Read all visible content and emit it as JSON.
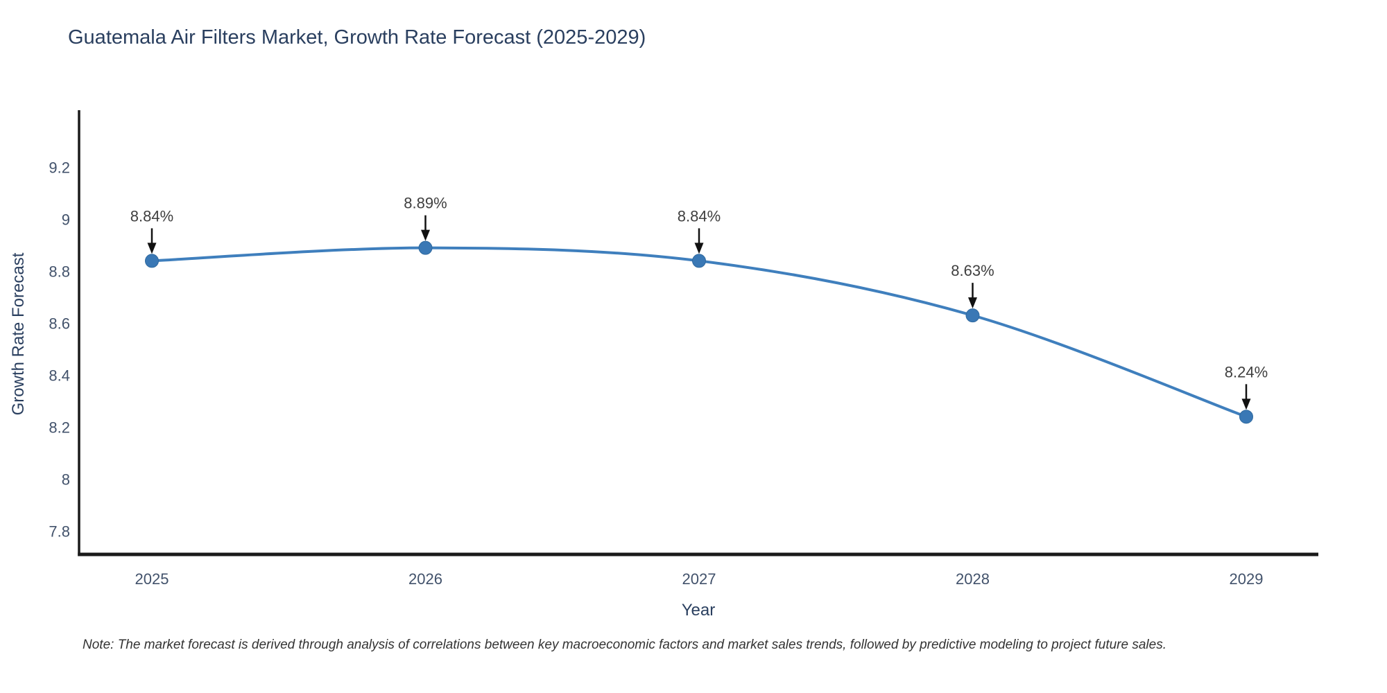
{
  "title": "Guatemala Air Filters Market, Growth Rate Forecast (2025-2029)",
  "note": "Note: The market forecast is derived through analysis of correlations between key macroeconomic factors and market sales trends, followed by predictive modeling to project future sales.",
  "chart_data": {
    "type": "line",
    "title": "Guatemala Air Filters Market, Growth Rate Forecast (2025-2029)",
    "xlabel": "Year",
    "ylabel": "Growth Rate Forecast",
    "categories": [
      "2025",
      "2026",
      "2027",
      "2028",
      "2029"
    ],
    "series": [
      {
        "name": "Growth Rate Forecast",
        "values": [
          8.84,
          8.89,
          8.84,
          8.63,
          8.24
        ],
        "point_labels": [
          "8.84%",
          "8.89%",
          "8.84%",
          "8.63%",
          "8.24%"
        ]
      }
    ],
    "y_ticks": [
      "7.8",
      "8",
      "8.2",
      "8.4",
      "8.6",
      "8.8",
      "9",
      "9.2"
    ],
    "y_tick_values": [
      7.8,
      8.0,
      8.2,
      8.4,
      8.6,
      8.8,
      9.0,
      9.2
    ],
    "ylim": [
      7.71,
      9.42
    ],
    "line_shape": "spline",
    "grid": false,
    "legend_visible": false,
    "annotations_have_arrows": true,
    "colors": {
      "line": "#3f7fbd",
      "marker": "#3a78b5",
      "marker_edge": "#2f699f",
      "axis_line": "#1a1a1a",
      "tick_label": "#42526b",
      "axis_title": "#2a3f5f",
      "chart_title": "#2a3f5f",
      "annotation_text": "#3f3f3f",
      "arrow": "#111111",
      "note_text": "#333333",
      "background": "#ffffff"
    }
  }
}
